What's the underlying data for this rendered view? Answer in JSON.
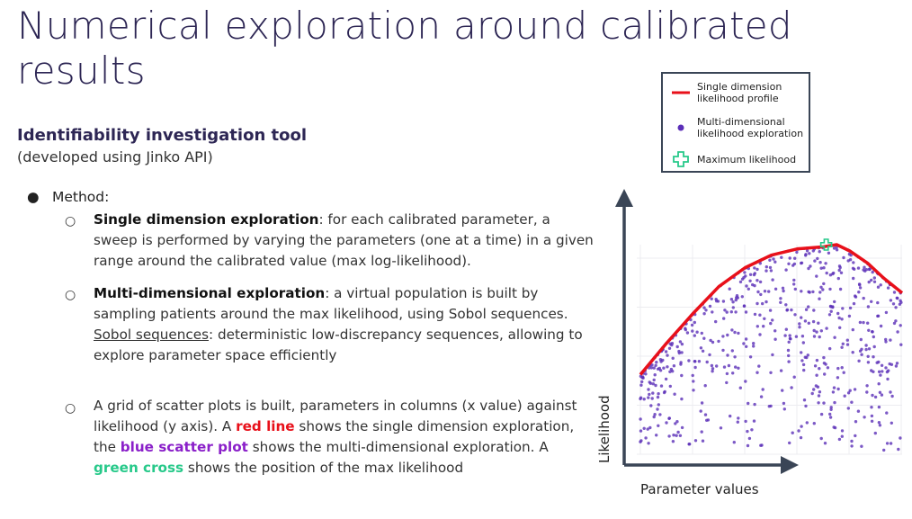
{
  "slide": {
    "title": "Numerical exploration around calibrated results",
    "subtitle": "Identifiability investigation tool",
    "subnote": "(developed using Jinko API)",
    "bullet_label": "Method:",
    "items": [
      {
        "bold": "Single dimension exploration",
        "text": ": for each calibrated parameter, a sweep is performed by varying the parameters (one at a time) in a given range around the calibrated value (max log-likelihood)."
      },
      {
        "bold": "Multi-dimensional exploration",
        "text": ": a virtual population is built by sampling patients around the max likelihood, using Sobol sequences.",
        "underline": "Sobol sequences",
        "text2": ": deterministic low-discrepancy sequences, allowing to explore parameter space efficiently"
      },
      {
        "text_a": "A grid of scatter plots is built, parameters in columns (x value) against likelihood (y axis). A ",
        "red": "red line",
        "text_b": " shows the single dimension exploration, the ",
        "purple": "blue scatter plot",
        "text_c": " shows the multi-dimensional exploration. A ",
        "green": "green cross",
        "text_d": " shows the position of the max likelihood"
      }
    ]
  },
  "legend": {
    "items": [
      {
        "icon": "red-line-icon",
        "label": "Single dimension likelihood profile"
      },
      {
        "icon": "purple-dot-icon",
        "label": "Multi-dimensional likelihood exploration"
      },
      {
        "icon": "green-cross-icon",
        "label": "Maximum likelihood"
      }
    ]
  },
  "chart_data": {
    "type": "scatter",
    "xlabel": "Parameter values",
    "ylabel": "Likelihood",
    "grid": true,
    "colors": {
      "profile": "#e8101a",
      "scatter": "#5b2fb8",
      "max": "#27c98a",
      "axes": "#3a4556"
    },
    "series": [
      {
        "name": "Single dimension likelihood profile",
        "kind": "line",
        "x": [
          0.0,
          0.1,
          0.2,
          0.3,
          0.4,
          0.5,
          0.6,
          0.7,
          0.75,
          0.8,
          0.87,
          0.93,
          1.0
        ],
        "y": [
          0.38,
          0.53,
          0.67,
          0.8,
          0.89,
          0.95,
          0.98,
          0.99,
          1.0,
          0.97,
          0.91,
          0.84,
          0.77
        ]
      },
      {
        "name": "Multi-dimensional likelihood exploration",
        "kind": "scatter"
      },
      {
        "name": "Maximum likelihood",
        "kind": "marker",
        "x": [
          0.71
        ],
        "y": [
          1.0
        ]
      }
    ]
  }
}
